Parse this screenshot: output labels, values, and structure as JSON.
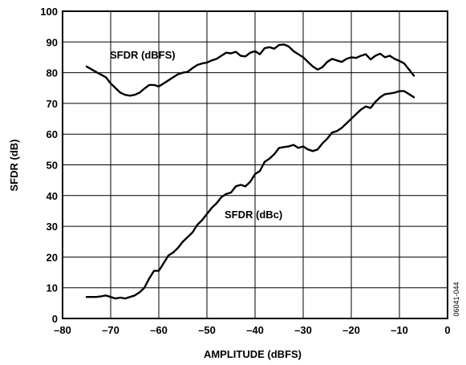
{
  "chart_data": {
    "type": "line",
    "title": "",
    "xlabel": "AMPLITUDE (dBFS)",
    "ylabel": "SFDR (dB)",
    "xlim": [
      -80,
      0
    ],
    "ylim": [
      0,
      100
    ],
    "xticks": [
      -80,
      -70,
      -60,
      -50,
      -40,
      -30,
      -20,
      -10,
      0
    ],
    "yticks": [
      0,
      10,
      20,
      30,
      40,
      50,
      60,
      70,
      80,
      90,
      100
    ],
    "xtick_labels": [
      "–80",
      "–70",
      "–60",
      "–50",
      "–40",
      "–30",
      "–20",
      "–10",
      "0"
    ],
    "ytick_labels": [
      "0",
      "10",
      "20",
      "30",
      "40",
      "50",
      "60",
      "70",
      "80",
      "90",
      "100"
    ],
    "grid": true,
    "series": [
      {
        "name": "SFDR (dBFS)",
        "x": [
          -75,
          -73,
          -71,
          -70,
          -69,
          -68,
          -67,
          -66,
          -65,
          -64,
          -63,
          -62,
          -61,
          -60,
          -59,
          -58,
          -57,
          -56,
          -55,
          -54,
          -53,
          -52,
          -51,
          -50,
          -49,
          -48,
          -47,
          -46,
          -45,
          -44,
          -43,
          -42,
          -41,
          -40,
          -39,
          -38,
          -37,
          -36,
          -35,
          -34,
          -33,
          -32,
          -31,
          -30,
          -29,
          -28,
          -27,
          -26,
          -25,
          -24,
          -23,
          -22,
          -21,
          -20,
          -19,
          -18,
          -17,
          -16,
          -15,
          -14,
          -13,
          -12,
          -11,
          -10,
          -9,
          -8,
          -7
        ],
        "y": [
          82,
          80.2,
          78.5,
          76.5,
          75,
          73.5,
          72.8,
          72.5,
          72.8,
          73.5,
          74.8,
          76,
          76,
          75.5,
          76.5,
          77.5,
          78.5,
          79.5,
          80,
          80.3,
          81.5,
          82.5,
          83,
          83.3,
          84,
          84.5,
          85.5,
          86.5,
          86.3,
          86.8,
          85.5,
          85.3,
          86.5,
          87,
          86,
          88,
          88.3,
          87.8,
          89,
          89.2,
          88.5,
          87,
          86,
          85,
          83.5,
          82,
          81,
          81.8,
          83.5,
          84.5,
          84,
          83.5,
          84.5,
          85,
          84.8,
          85.5,
          86,
          84.3,
          85.5,
          86.2,
          85,
          85.5,
          84.5,
          83.8,
          83,
          81,
          79
        ]
      },
      {
        "name": "SFDR (dBc)",
        "x": [
          -75,
          -73,
          -72,
          -71,
          -70,
          -69,
          -68,
          -67,
          -66,
          -65,
          -64,
          -63,
          -62,
          -61,
          -60,
          -59,
          -58,
          -57,
          -56,
          -55,
          -54,
          -53,
          -52,
          -51,
          -50,
          -49,
          -48,
          -47,
          -46,
          -45,
          -44,
          -43,
          -42,
          -41,
          -40,
          -39,
          -38,
          -37,
          -36,
          -35,
          -34,
          -33,
          -32,
          -31,
          -30,
          -29,
          -28,
          -27,
          -26,
          -25,
          -24,
          -23,
          -22,
          -21,
          -20,
          -19,
          -18,
          -17,
          -16,
          -15,
          -14,
          -13,
          -12,
          -11,
          -10,
          -9,
          -8,
          -7
        ],
        "y": [
          7,
          7,
          7.2,
          7.5,
          7,
          6.5,
          6.8,
          6.5,
          7,
          7.5,
          8.5,
          10,
          13,
          15.5,
          15.5,
          18,
          20.5,
          21.5,
          23,
          25,
          26.5,
          28,
          30.5,
          32,
          34,
          36,
          37.5,
          39.5,
          40.5,
          41,
          43,
          43.5,
          43,
          44.5,
          47,
          48,
          51,
          52,
          53.5,
          55.5,
          55.8,
          56,
          56.5,
          55.5,
          56,
          55,
          54.5,
          55,
          57,
          58.5,
          60.5,
          61,
          62,
          63.5,
          65,
          66.5,
          68,
          69,
          68.5,
          70.5,
          72,
          73,
          73.2,
          73.5,
          74,
          74,
          73,
          72
        ]
      }
    ],
    "annotations": [
      "SFDR (dBFS)",
      "SFDR (dBc)"
    ],
    "figure_code": "06041-044"
  }
}
